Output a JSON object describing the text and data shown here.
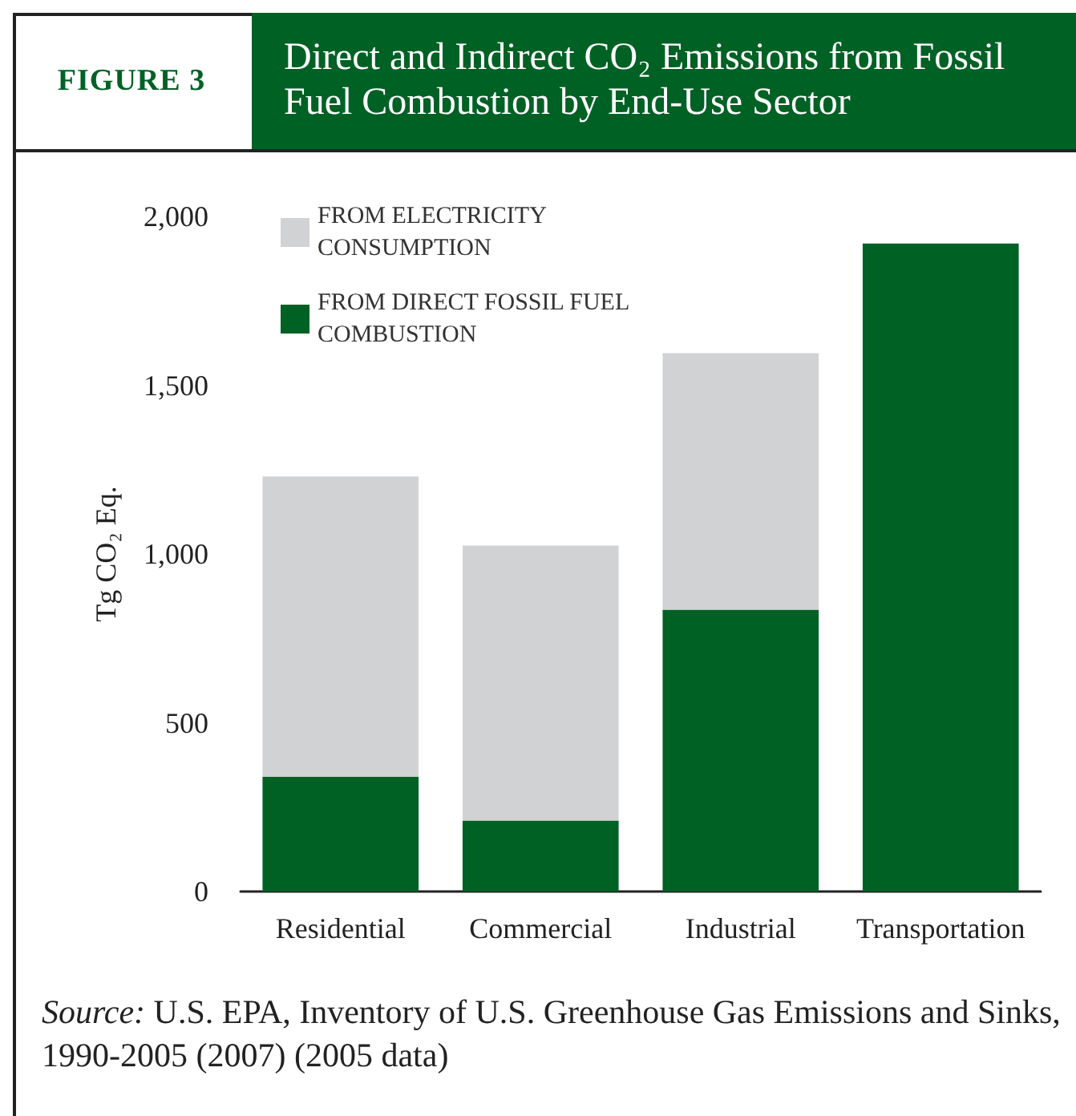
{
  "chart_data": {
    "type": "bar",
    "title": "Direct and Indirect CO₂ Emissions from Fossil Fuel Combustion by End-Use Sector",
    "subtitle": "FIGURE 3",
    "ylabel": "Tg CO₂ Eq.",
    "categories": [
      "Residential",
      "Commercial",
      "Industrial",
      "Transportation"
    ],
    "series": [
      {
        "name": "FROM DIRECT FOSSIL FUEL COMBUSTION",
        "color": "#006125",
        "values": [
          340,
          210,
          835,
          1920
        ]
      },
      {
        "name": "FROM ELECTRICITY CONSUMPTION",
        "color": "#d1d2d4",
        "values": [
          890,
          815,
          760,
          null
        ]
      }
    ],
    "stacked": true,
    "ylim": [
      0,
      2000
    ],
    "yticks": [
      0,
      500,
      {
        "value": 1000,
        "label": "1,000"
      },
      {
        "value": 1500,
        "label": "1,500"
      },
      {
        "value": 2000,
        "label": "2,000"
      }
    ],
    "grid": false,
    "legend": "top left",
    "annotations": [
      "Source: U.S. EPA, Inventory of U.S. Greenhouse Gas Emissions and Sinks, 1990-2005 (2007) (2005 data)"
    ]
  }
}
